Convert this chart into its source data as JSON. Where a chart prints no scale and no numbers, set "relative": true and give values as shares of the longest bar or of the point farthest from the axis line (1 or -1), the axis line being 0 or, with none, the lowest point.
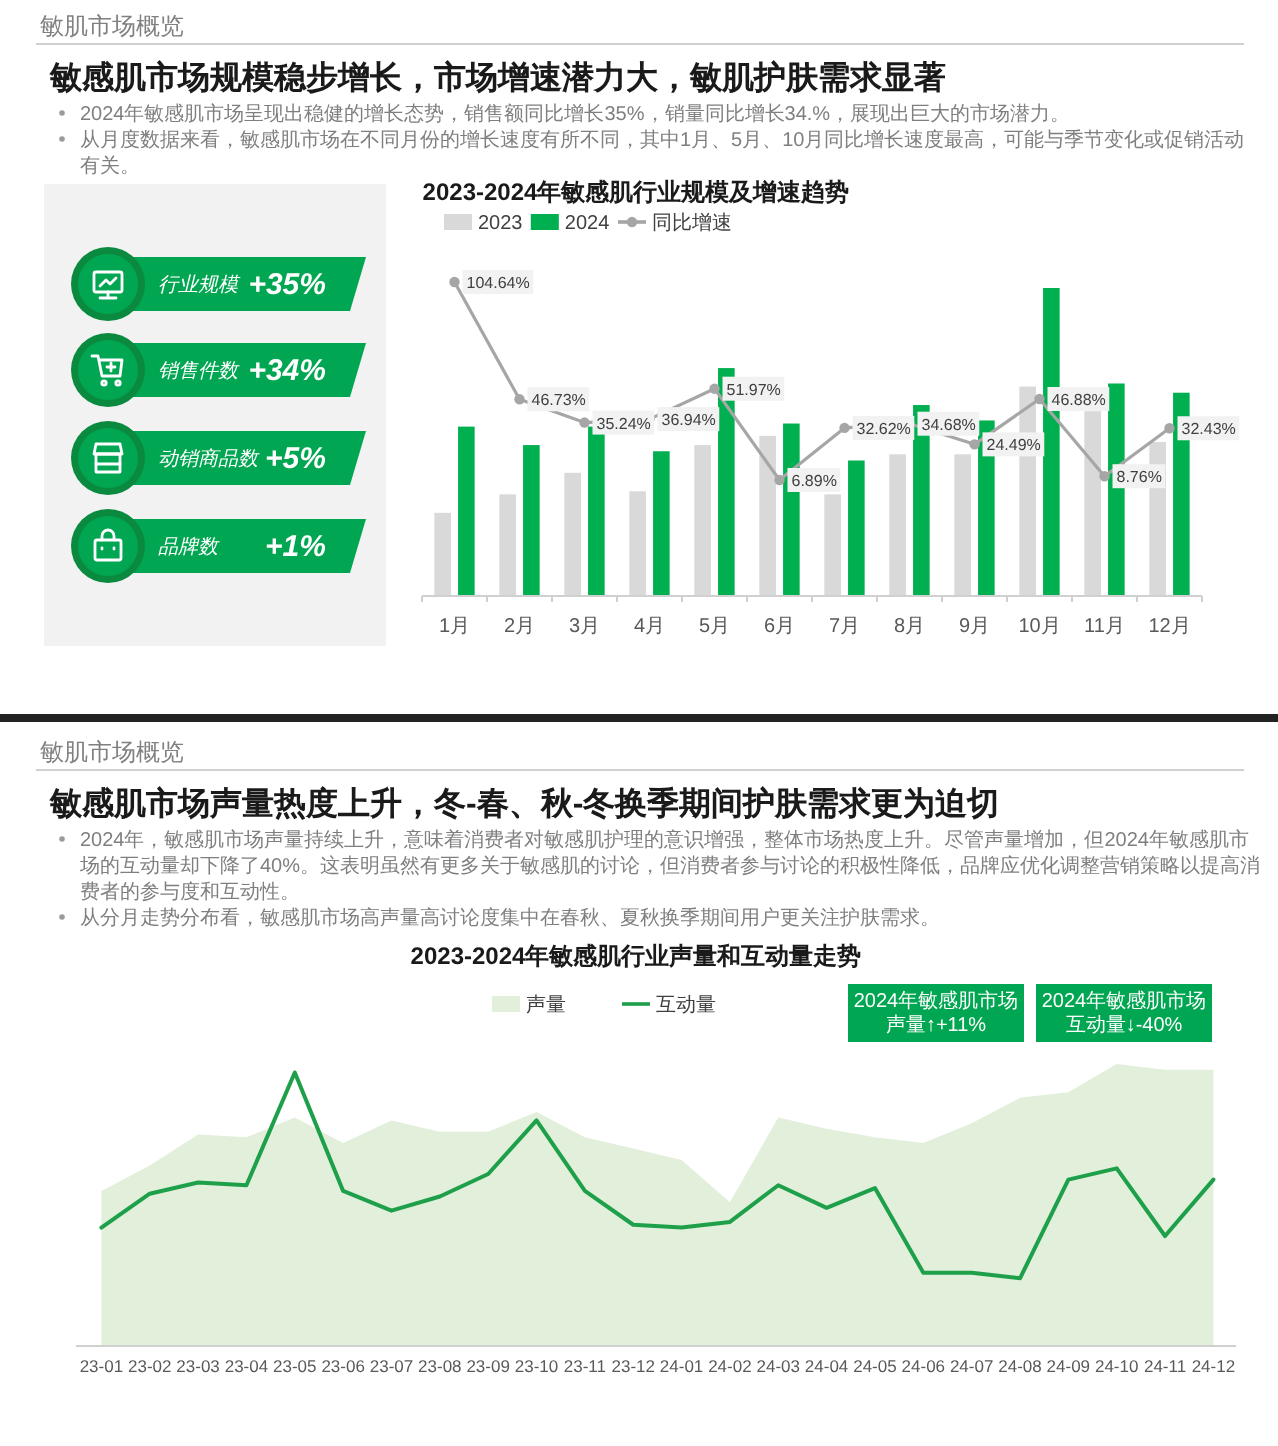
{
  "chart_data": [
    {
      "type": "other",
      "annotations": [
        "行业规模",
        "+35%",
        "销售件数",
        "+34%",
        "动销商品数",
        "+5%",
        "品牌数",
        "+1%"
      ]
    },
    {
      "type": "bar",
      "title": "2023-2024年敏感肌行业规模及增速趋势",
      "annotations": [
        "敏肌市场概览",
        "敏感肌市场规模稳步增长，市场增速潜力大，敏肌护肤需求显著",
        "2024年敏感肌市场呈现出稳健的增长态势，销售额同比增长35%，销量同比增长34.%，展现出巨大的市场潜力。",
        "从月度数据来看，敏感肌市场在不同月份的增长速度有所不同，其中1月、5月、10月同比增长速度最高，可能与季节变化或促销活动有关。"
      ],
      "categories": [
        "1月",
        "2月",
        "3月",
        "4月",
        "5月",
        "6月",
        "7月",
        "8月",
        "9月",
        "10月",
        "11月",
        "12月"
      ],
      "relative": true,
      "series": [
        {
          "name": "2023",
          "color": "#d9d9d9",
          "values": [
            0.27,
            0.33,
            0.4,
            0.34,
            0.49,
            0.52,
            0.33,
            0.46,
            0.46,
            0.68,
            0.6,
            0.5
          ]
        },
        {
          "name": "2024",
          "color": "#00b050",
          "values": [
            0.55,
            0.49,
            0.55,
            0.47,
            0.74,
            0.56,
            0.44,
            0.62,
            0.57,
            1,
            0.69,
            0.66
          ]
        }
      ],
      "legend": "top"
    },
    {
      "type": "line",
      "categories": [
        null,
        null,
        null,
        null,
        null,
        null,
        null,
        null,
        null,
        null,
        null,
        null
      ],
      "series": [
        {
          "name": "同比增速",
          "color": "#a6a6a6",
          "values": [
            104.64,
            46.73,
            35.24,
            36.94,
            51.97,
            6.89,
            32.62,
            34.68,
            24.49,
            46.88,
            8.76,
            32.43
          ],
          "value_labels": [
            "104.64%",
            "46.73%",
            "35.24%",
            "36.94%",
            "51.97%",
            "6.89%",
            "32.62%",
            "34.68%",
            "24.49%",
            "46.88%",
            "8.76%",
            "32.43%"
          ]
        }
      ],
      "marker": "circle",
      "legend": "top"
    },
    {
      "type": "area",
      "title": "2023-2024年敏感肌行业声量和互动量走势",
      "annotations": [
        "敏肌市场概览",
        "敏感肌市场声量热度上升，冬-春、秋-冬换季期间护肤需求更为迫切",
        "2024年，敏感肌市场声量持续上升，意味着消费者对敏感肌护理的意识增强，整体市场热度上升。尽管声量增加，但2024年敏感肌市场的互动量却下降了40%。这表明虽然有更多关于敏感肌的讨论，但消费者参与讨论的积极性降低，品牌应优化调整营销策略以提高消费者的参与度和互动性。",
        "从分月走势分布看，敏感肌市场高声量高讨论度集中在春秋、夏秋换季期间用户更关注护肤需求。",
        "2024年敏感肌市场声量↑+11%",
        "2024年敏感肌市场互动量↓-40%"
      ],
      "categories": [
        "23-01",
        "23-02",
        "23-03",
        "23-04",
        "23-05",
        "23-06",
        "23-07",
        "23-08",
        "23-09",
        "23-10",
        "23-11",
        "23-12",
        "24-01",
        "24-02",
        "24-03",
        "24-04",
        "24-05",
        "24-06",
        "24-07",
        "24-08",
        "24-09",
        "24-10",
        "24-11",
        "24-12"
      ],
      "relative": true,
      "series": [
        {
          "name": "声量",
          "color": "#e2efda",
          "values": [
            0.55,
            0.64,
            0.75,
            0.74,
            0.81,
            0.72,
            0.8,
            0.76,
            0.76,
            0.83,
            0.74,
            0.7,
            0.66,
            0.51,
            0.81,
            0.77,
            0.74,
            0.72,
            0.79,
            0.88,
            0.9,
            1,
            0.98,
            0.98
          ]
        },
        {
          "name": "互动量",
          "type": "line",
          "color": "#1ea04b",
          "values": [
            0.42,
            0.54,
            0.58,
            0.57,
            0.97,
            0.55,
            0.48,
            0.53,
            0.61,
            0.8,
            0.55,
            0.43,
            0.42,
            0.44,
            0.57,
            0.49,
            0.56,
            0.26,
            0.26,
            0.24,
            0.59,
            0.63,
            0.39,
            0.59
          ]
        }
      ],
      "legend": "top"
    }
  ]
}
